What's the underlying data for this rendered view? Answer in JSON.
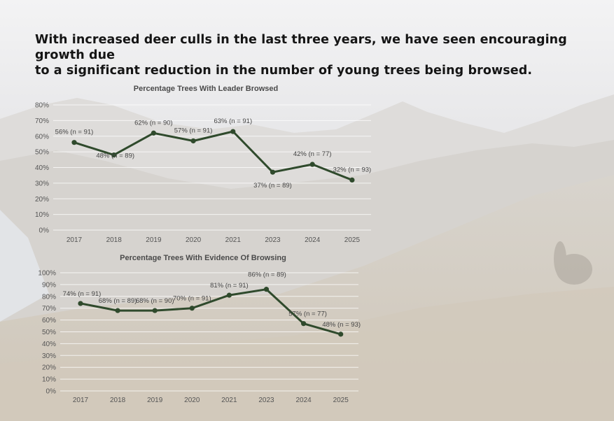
{
  "headline": {
    "line1": "With increased deer culls in the last three years, we have seen encouraging growth due",
    "line2": "to a significant reduction in the number of young trees being browsed."
  },
  "colors": {
    "series": "#2f4a2c"
  },
  "chart_data": [
    {
      "type": "line",
      "title": "Percentage Trees With Leader Browsed",
      "xlabel": "",
      "ylabel": "",
      "categories": [
        "2017",
        "2018",
        "2019",
        "2020",
        "2021",
        "2023",
        "2024",
        "2025"
      ],
      "series": [
        {
          "values": [
            56,
            48,
            62,
            57,
            63,
            37,
            42,
            32
          ]
        }
      ],
      "data_labels": [
        "56% (n = 91)",
        "48% (n = 89)",
        "62% (n = 90)",
        "57% (n = 91)",
        "63% (n = 91)",
        "37% (n = 89)",
        "42% (n = 77)",
        "32% (n = 93)"
      ],
      "yticks": [
        "0%",
        "10%",
        "20%",
        "30%",
        "40%",
        "50%",
        "60%",
        "70%",
        "80%"
      ],
      "ylim": [
        0,
        80
      ],
      "grid": true
    },
    {
      "type": "line",
      "title": "Percentage Trees With Evidence Of Browsing",
      "xlabel": "",
      "ylabel": "",
      "categories": [
        "2017",
        "2018",
        "2019",
        "2020",
        "2021",
        "2023",
        "2024",
        "2025"
      ],
      "series": [
        {
          "values": [
            74,
            68,
            68,
            70,
            81,
            86,
            57,
            48
          ]
        }
      ],
      "data_labels": [
        "74% (n = 91)",
        "68% (n = 89)",
        "68% (n = 90)",
        "70% (n = 91)",
        "81% (n = 91)",
        "86% (n = 89)",
        "57% (n = 77)",
        "48% (n = 93)"
      ],
      "yticks": [
        "0%",
        "10%",
        "20%",
        "30%",
        "40%",
        "50%",
        "60%",
        "70%",
        "80%",
        "90%",
        "100%"
      ],
      "ylim": [
        0,
        100
      ],
      "grid": true
    }
  ]
}
